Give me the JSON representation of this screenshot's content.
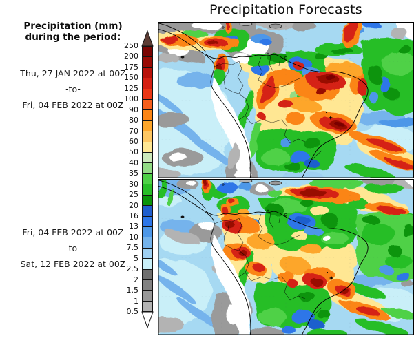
{
  "title": "Precipitation Forecasts",
  "sidebar": {
    "legend_title_line1": "Precipitation (mm)",
    "legend_title_line2": "during the period:",
    "period1": {
      "start": "Thu, 27 JAN 2022 at 00Z",
      "separator": "-to-",
      "end": "Fri, 04 FEB 2022 at 00Z"
    },
    "period2": {
      "start": "Fri, 04 FEB 2022 at 00Z",
      "separator": "-to-",
      "end": "Sat, 12 FEB 2022 at 00Z"
    }
  },
  "colorbar": {
    "labels": [
      "250",
      "200",
      "175",
      "150",
      "125",
      "100",
      "90",
      "80",
      "70",
      "60",
      "50",
      "40",
      "35",
      "30",
      "25",
      "20",
      "16",
      "13",
      "10",
      "7.5",
      "5",
      "2.5",
      "2",
      "1.5",
      "1",
      "0.5"
    ],
    "colors": [
      "#7a0402",
      "#990a04",
      "#b9120a",
      "#d52012",
      "#eb3716",
      "#f75f1c",
      "#fb8516",
      "#fda62b",
      "#fec763",
      "#ffe793",
      "#cdeabc",
      "#93dc85",
      "#4fd147",
      "#28be28",
      "#0a940a",
      "#1f5ecd",
      "#2d76e8",
      "#4d97e8",
      "#74b3ec",
      "#9fd0f2",
      "#c9eff8",
      "#6f6f6f",
      "#828282",
      "#979797",
      "#b3b3b3"
    ],
    "arrow_top_color": "#5c3c34",
    "arrow_bottom_color": "#ffffff",
    "ocean_base_color": "#a6d9f2"
  }
}
